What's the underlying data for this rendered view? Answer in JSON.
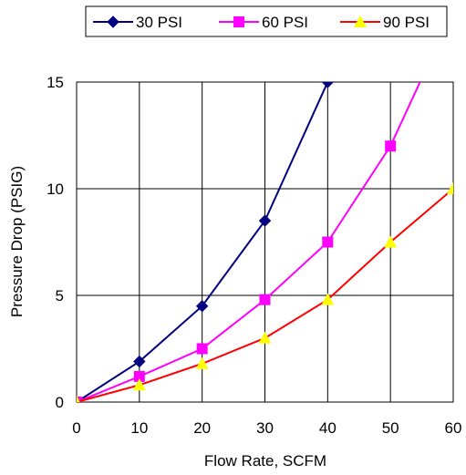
{
  "chart_data": {
    "type": "line",
    "title": "",
    "xlabel": "Flow Rate, SCFM",
    "ylabel": "Pressure Drop (PSIG)",
    "xlim": [
      0,
      60
    ],
    "ylim": [
      0,
      15
    ],
    "x_ticks": [
      0,
      10,
      20,
      30,
      40,
      50,
      60
    ],
    "y_ticks": [
      0,
      5,
      10,
      15
    ],
    "grid": true,
    "legend_position": "top",
    "series": [
      {
        "name": "30 PSI",
        "color": "#000080",
        "marker": "diamond",
        "points": [
          [
            0,
            0
          ],
          [
            10,
            1.9
          ],
          [
            20,
            4.5
          ],
          [
            30,
            8.5
          ],
          [
            40,
            15
          ]
        ]
      },
      {
        "name": "60 PSI",
        "color": "#ff00ff",
        "marker": "square",
        "points": [
          [
            0,
            0
          ],
          [
            10,
            1.2
          ],
          [
            20,
            2.5
          ],
          [
            30,
            4.8
          ],
          [
            40,
            7.5
          ],
          [
            50,
            12
          ],
          [
            55.5,
            15.5
          ]
        ],
        "marked_points": 6
      },
      {
        "name": "90 PSI",
        "color": "#ff0000",
        "marker_color": "#ffff00",
        "marker": "triangle",
        "points": [
          [
            0,
            0
          ],
          [
            10,
            0.8
          ],
          [
            20,
            1.8
          ],
          [
            30,
            3
          ],
          [
            40,
            4.8
          ],
          [
            50,
            7.5
          ],
          [
            60,
            10
          ]
        ]
      }
    ]
  }
}
